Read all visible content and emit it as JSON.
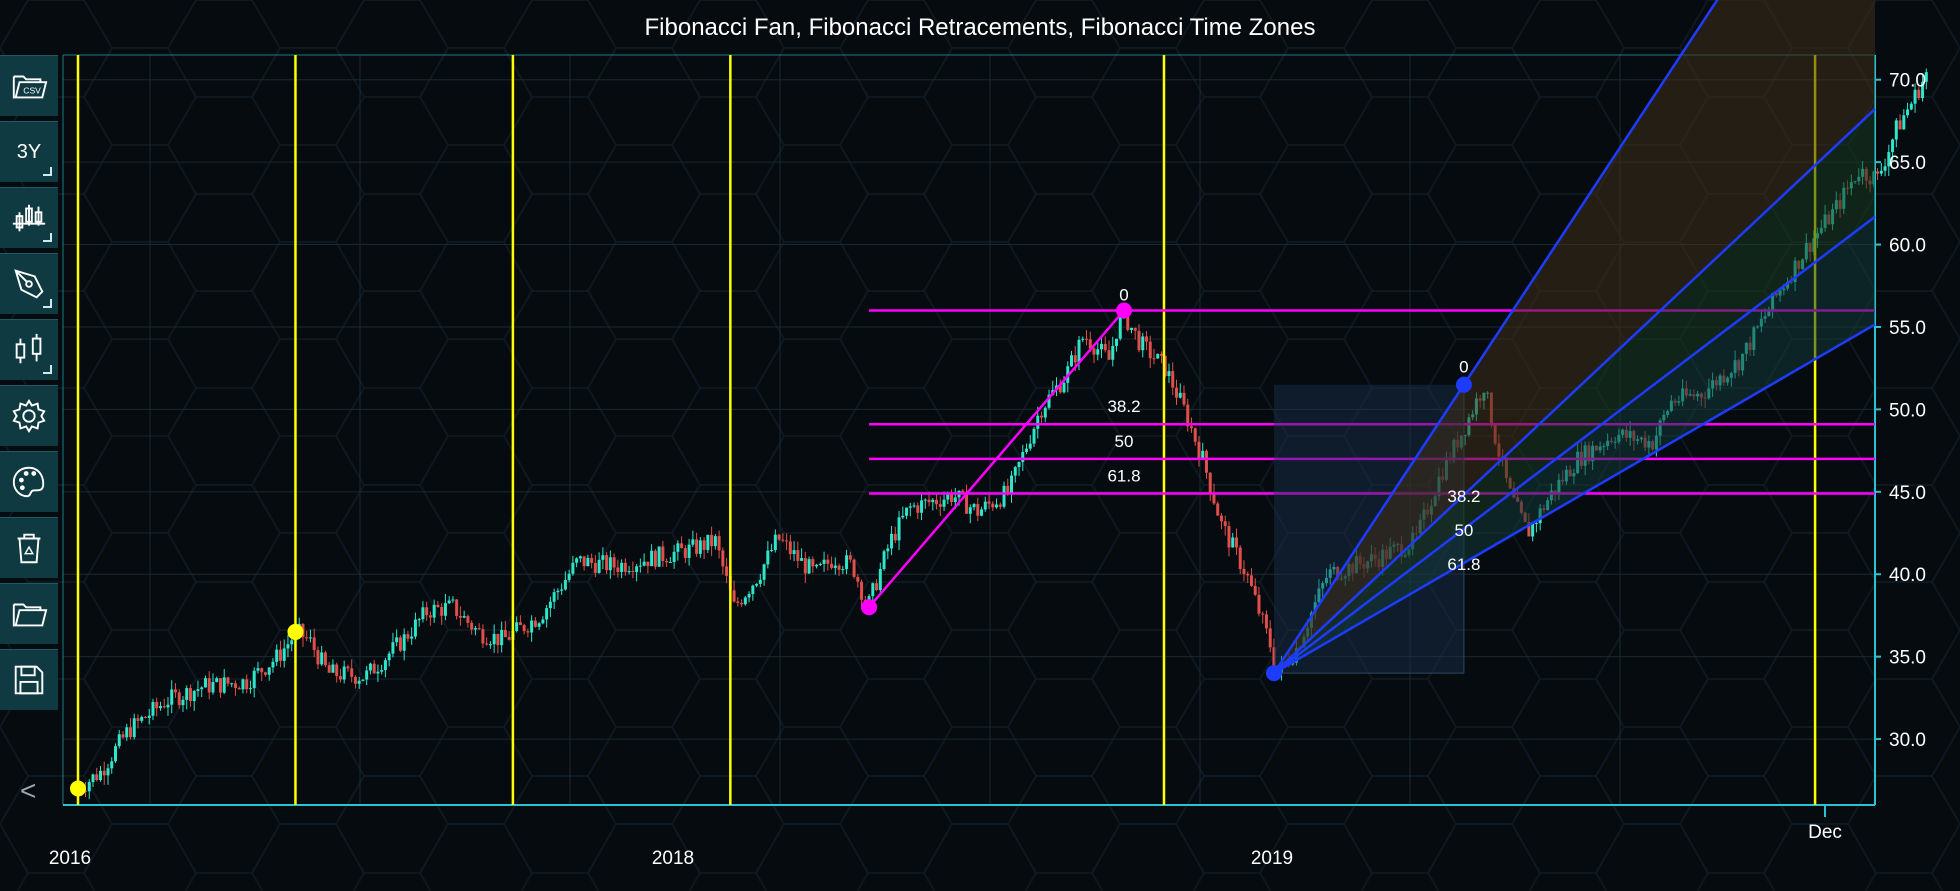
{
  "title": "Fibonacci Fan, Fibonacci Retracements, Fibonacci Time Zones",
  "toolbar": {
    "items": [
      {
        "name": "open-csv",
        "icon": "csv-folder-icon"
      },
      {
        "name": "range-3y",
        "label": "3Y"
      },
      {
        "name": "chart-type",
        "icon": "candlestick-icon"
      },
      {
        "name": "draw",
        "icon": "pen-icon"
      },
      {
        "name": "indicators",
        "icon": "candles-icon"
      },
      {
        "name": "settings",
        "icon": "gear-icon"
      },
      {
        "name": "theme",
        "icon": "palette-icon"
      },
      {
        "name": "delete",
        "icon": "recycle-bin-icon"
      },
      {
        "name": "open",
        "icon": "folder-icon"
      },
      {
        "name": "save",
        "icon": "floppy-icon"
      }
    ],
    "collapse_label": "<"
  },
  "colors": {
    "background": "#060b10",
    "axis": "#29c4d4",
    "grid": "#1a2a30",
    "up_candle": "#2ee6c9",
    "down_candle": "#e04f4a",
    "time_zone": "#ffff00",
    "retracement": "#ff00ff",
    "fan": "#1e3cff"
  },
  "chart_data": {
    "type": "candlestick",
    "title": "Fibonacci Fan, Fibonacci Retracements, Fibonacci Time Zones",
    "x_ticks": [
      "2016",
      "2018",
      "2019",
      "Dec"
    ],
    "y_ticks": [
      "30.0",
      "35.0",
      "40.0",
      "45.0",
      "50.0",
      "55.0",
      "60.0",
      "65.0",
      "70.0"
    ],
    "ylim": [
      26,
      71.5
    ],
    "grid": true,
    "price_path": [
      [
        0,
        27.0
      ],
      [
        18,
        28.0
      ],
      [
        40,
        30.5
      ],
      [
        70,
        32.3
      ],
      [
        100,
        33.2
      ],
      [
        135,
        33.5
      ],
      [
        160,
        35.0
      ],
      [
        175,
        36.5
      ],
      [
        185,
        36.0
      ],
      [
        200,
        34.0
      ],
      [
        230,
        33.8
      ],
      [
        260,
        36.0
      ],
      [
        280,
        37.8
      ],
      [
        300,
        38.0
      ],
      [
        320,
        36.5
      ],
      [
        340,
        36.0
      ],
      [
        370,
        37.5
      ],
      [
        400,
        40.8
      ],
      [
        430,
        40.5
      ],
      [
        460,
        41.0
      ],
      [
        490,
        41.5
      ],
      [
        510,
        42.0
      ],
      [
        525,
        38.0
      ],
      [
        545,
        40.0
      ],
      [
        560,
        42.2
      ],
      [
        575,
        41.0
      ],
      [
        590,
        40.0
      ],
      [
        605,
        41.0
      ],
      [
        620,
        40.5
      ],
      [
        632,
        38.0
      ],
      [
        650,
        42.0
      ],
      [
        665,
        44.0
      ],
      [
        700,
        44.8
      ],
      [
        720,
        43.8
      ],
      [
        745,
        45.0
      ],
      [
        770,
        50.0
      ],
      [
        790,
        52.0
      ],
      [
        805,
        54.5
      ],
      [
        825,
        53.0
      ],
      [
        835,
        56.0
      ],
      [
        850,
        54.0
      ],
      [
        870,
        52.5
      ],
      [
        885,
        50.0
      ],
      [
        900,
        47.0
      ],
      [
        915,
        43.0
      ],
      [
        935,
        40.0
      ],
      [
        955,
        35.5
      ],
      [
        960,
        34.0
      ],
      [
        975,
        35.5
      ],
      [
        1000,
        40.0
      ],
      [
        1040,
        41.0
      ],
      [
        1070,
        42.0
      ],
      [
        1090,
        46.0
      ],
      [
        1110,
        49.0
      ],
      [
        1125,
        51.5
      ],
      [
        1135,
        48.0
      ],
      [
        1145,
        45.0
      ],
      [
        1160,
        42.5
      ],
      [
        1180,
        45.0
      ],
      [
        1200,
        47.0
      ],
      [
        1230,
        48.5
      ],
      [
        1260,
        48.0
      ],
      [
        1275,
        50.5
      ],
      [
        1300,
        51.0
      ],
      [
        1330,
        53.0
      ],
      [
        1360,
        57.0
      ],
      [
        1385,
        60.0
      ],
      [
        1405,
        62.0
      ],
      [
        1425,
        64.5
      ],
      [
        1440,
        64.0
      ],
      [
        1455,
        67.0
      ],
      [
        1470,
        69.0
      ],
      [
        1480,
        70.5
      ]
    ],
    "time_zones": [
      {
        "offset": 0,
        "marker": 27.0
      },
      {
        "offset": 174,
        "marker": 36.5
      },
      {
        "offset": 348
      },
      {
        "offset": 522
      },
      {
        "offset": 869
      },
      {
        "offset": 1390
      }
    ],
    "retracement_1": {
      "start": {
        "offset": 633,
        "price": 38.0
      },
      "end": {
        "offset": 837,
        "price": 56.0
      },
      "levels": [
        {
          "label": "0",
          "price": 56.0
        },
        {
          "label": "38.2",
          "price": 49.1
        },
        {
          "label": "50",
          "price": 47.0
        },
        {
          "label": "61.8",
          "price": 44.9
        }
      ]
    },
    "fan": {
      "origin": {
        "offset": 957,
        "price": 34.0
      },
      "end": {
        "offset": 1109,
        "price": 51.5
      },
      "levels": [
        {
          "label": "0"
        },
        {
          "label": "38.2",
          "ratio": 0.382
        },
        {
          "label": "50",
          "ratio": 0.5
        },
        {
          "label": "61.8",
          "ratio": 0.618
        }
      ]
    }
  }
}
